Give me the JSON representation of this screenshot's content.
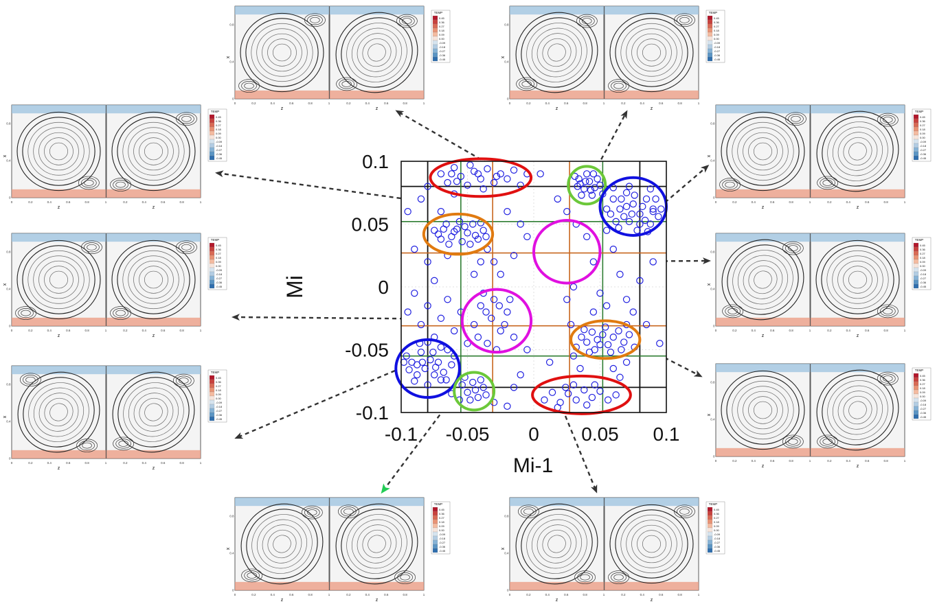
{
  "chart_data": {
    "type": "scatter",
    "xlabel": "Mi-1",
    "ylabel": "Mi",
    "xlim": [
      -0.1,
      0.1
    ],
    "ylim": [
      -0.1,
      0.1
    ],
    "x_ticks": [
      "-0.1",
      "-0.05",
      "0",
      "0.05",
      "0.1"
    ],
    "y_ticks": [
      "0.1",
      "0.05",
      "0",
      "-0.05",
      "-0.1"
    ],
    "x_tick_values": [
      -0.1,
      -0.05,
      0,
      0.05,
      0.1
    ],
    "y_tick_values": [
      0.1,
      0.05,
      0,
      -0.05,
      -0.1
    ],
    "marker_color": "#1f1fe0",
    "black_lines": [
      -0.08,
      0.08
    ],
    "green_lines": [
      -0.055,
      0.052
    ],
    "orange_lines": [
      -0.031,
      0.027
    ],
    "cluster_circles": [
      {
        "color": "#e01010",
        "cx": -0.04,
        "cy": 0.087,
        "rx": 0.038,
        "ry": 0.015
      },
      {
        "color": "#e07a10",
        "cx": -0.057,
        "cy": 0.042,
        "rx": 0.026,
        "ry": 0.016
      },
      {
        "color": "#6cc83a",
        "cx": 0.04,
        "cy": 0.081,
        "rx": 0.014,
        "ry": 0.015
      },
      {
        "color": "#1010e0",
        "cx": 0.075,
        "cy": 0.064,
        "rx": 0.025,
        "ry": 0.023
      },
      {
        "color": "#e010e0",
        "cx": 0.025,
        "cy": 0.028,
        "rx": 0.025,
        "ry": 0.025
      },
      {
        "color": "#e010e0",
        "cx": -0.028,
        "cy": -0.027,
        "rx": 0.026,
        "ry": 0.025
      },
      {
        "color": "#e07a10",
        "cx": 0.054,
        "cy": -0.042,
        "rx": 0.026,
        "ry": 0.015
      },
      {
        "color": "#1010e0",
        "cx": -0.08,
        "cy": -0.065,
        "rx": 0.024,
        "ry": 0.023
      },
      {
        "color": "#6cc83a",
        "cx": -0.045,
        "cy": -0.083,
        "rx": 0.015,
        "ry": 0.015
      },
      {
        "color": "#e01010",
        "cx": 0.036,
        "cy": -0.086,
        "rx": 0.037,
        "ry": 0.015
      }
    ],
    "points": [
      [
        -0.07,
        0.09
      ],
      [
        -0.065,
        0.083
      ],
      [
        -0.06,
        0.095
      ],
      [
        -0.055,
        0.088
      ],
      [
        -0.05,
        0.081
      ],
      [
        -0.045,
        0.092
      ],
      [
        -0.04,
        0.086
      ],
      [
        -0.035,
        0.094
      ],
      [
        -0.03,
        0.083
      ],
      [
        -0.025,
        0.09
      ],
      [
        -0.02,
        0.086
      ],
      [
        -0.015,
        0.093
      ],
      [
        -0.01,
        0.081
      ],
      [
        -0.048,
        0.097
      ],
      [
        -0.062,
        0.09
      ],
      [
        -0.038,
        0.078
      ],
      [
        -0.028,
        0.088
      ],
      [
        -0.005,
        0.09
      ],
      [
        -0.058,
        0.084
      ],
      [
        -0.042,
        0.09
      ],
      [
        -0.075,
        0.045
      ],
      [
        -0.07,
        0.038
      ],
      [
        -0.066,
        0.05
      ],
      [
        -0.062,
        0.04
      ],
      [
        -0.058,
        0.046
      ],
      [
        -0.054,
        0.036
      ],
      [
        -0.05,
        0.043
      ],
      [
        -0.046,
        0.05
      ],
      [
        -0.042,
        0.038
      ],
      [
        -0.038,
        0.045
      ],
      [
        -0.064,
        0.034
      ],
      [
        -0.056,
        0.052
      ],
      [
        -0.072,
        0.042
      ],
      [
        -0.048,
        0.034
      ],
      [
        -0.044,
        0.041
      ],
      [
        -0.06,
        0.044
      ],
      [
        -0.052,
        0.048
      ],
      [
        -0.068,
        0.046
      ],
      [
        -0.04,
        0.051
      ],
      [
        -0.036,
        0.04
      ],
      [
        0.031,
        0.088
      ],
      [
        0.035,
        0.082
      ],
      [
        0.038,
        0.078
      ],
      [
        0.042,
        0.084
      ],
      [
        0.046,
        0.079
      ],
      [
        0.04,
        0.09
      ],
      [
        0.044,
        0.073
      ],
      [
        0.048,
        0.086
      ],
      [
        0.036,
        0.073
      ],
      [
        0.033,
        0.08
      ],
      [
        0.05,
        0.081
      ],
      [
        0.045,
        0.09
      ],
      [
        0.039,
        0.084
      ],
      [
        0.043,
        0.077
      ],
      [
        0.034,
        0.086
      ],
      [
        0.06,
        0.07
      ],
      [
        0.065,
        0.062
      ],
      [
        0.07,
        0.075
      ],
      [
        0.075,
        0.066
      ],
      [
        0.08,
        0.058
      ],
      [
        0.085,
        0.07
      ],
      [
        0.09,
        0.062
      ],
      [
        0.072,
        0.052
      ],
      [
        0.078,
        0.045
      ],
      [
        0.088,
        0.05
      ],
      [
        0.064,
        0.047
      ],
      [
        0.068,
        0.056
      ],
      [
        0.082,
        0.064
      ],
      [
        0.092,
        0.07
      ],
      [
        0.094,
        0.056
      ],
      [
        0.058,
        0.058
      ],
      [
        0.062,
        0.052
      ],
      [
        0.076,
        0.073
      ],
      [
        0.086,
        0.044
      ],
      [
        0.07,
        0.064
      ],
      [
        0.08,
        0.05
      ],
      [
        0.066,
        0.07
      ],
      [
        0.09,
        0.06
      ],
      [
        0.074,
        0.058
      ],
      [
        0.084,
        0.053
      ],
      [
        0.055,
        0.062
      ],
      [
        0.06,
        0.079
      ],
      [
        0.096,
        0.062
      ],
      [
        0.072,
        0.08
      ],
      [
        0.052,
        0.074
      ],
      [
        -0.045,
        -0.03
      ],
      [
        -0.04,
        -0.015
      ],
      [
        -0.035,
        -0.045
      ],
      [
        -0.03,
        -0.01
      ],
      [
        -0.025,
        -0.035
      ],
      [
        -0.02,
        -0.02
      ],
      [
        -0.015,
        -0.04
      ],
      [
        -0.032,
        -0.025
      ],
      [
        -0.038,
        -0.005
      ],
      [
        -0.028,
        -0.05
      ],
      [
        -0.022,
        -0.03
      ],
      [
        -0.042,
        -0.04
      ],
      [
        -0.018,
        -0.01
      ],
      [
        -0.036,
        -0.02
      ],
      [
        -0.026,
        -0.015
      ],
      [
        -0.096,
        -0.055
      ],
      [
        -0.092,
        -0.06
      ],
      [
        -0.088,
        -0.07
      ],
      [
        -0.085,
        -0.052
      ],
      [
        -0.082,
        -0.065
      ],
      [
        -0.078,
        -0.058
      ],
      [
        -0.075,
        -0.07
      ],
      [
        -0.072,
        -0.06
      ],
      [
        -0.068,
        -0.068
      ],
      [
        -0.065,
        -0.05
      ],
      [
        -0.062,
        -0.062
      ],
      [
        -0.09,
        -0.075
      ],
      [
        -0.086,
        -0.045
      ],
      [
        -0.08,
        -0.078
      ],
      [
        -0.07,
        -0.048
      ],
      [
        -0.076,
        -0.052
      ],
      [
        -0.066,
        -0.074
      ],
      [
        -0.094,
        -0.066
      ],
      [
        -0.084,
        -0.06
      ],
      [
        -0.074,
        -0.064
      ],
      [
        -0.098,
        -0.06
      ],
      [
        -0.06,
        -0.055
      ],
      [
        -0.08,
        -0.044
      ],
      [
        -0.07,
        -0.074
      ],
      [
        -0.088,
        -0.062
      ],
      [
        -0.054,
        -0.078
      ],
      [
        -0.05,
        -0.084
      ],
      [
        -0.046,
        -0.076
      ],
      [
        -0.042,
        -0.088
      ],
      [
        -0.038,
        -0.08
      ],
      [
        -0.048,
        -0.09
      ],
      [
        -0.044,
        -0.082
      ],
      [
        -0.036,
        -0.086
      ],
      [
        -0.052,
        -0.072
      ],
      [
        -0.04,
        -0.074
      ],
      [
        0.032,
        -0.048
      ],
      [
        0.036,
        -0.04
      ],
      [
        0.04,
        -0.044
      ],
      [
        0.044,
        -0.036
      ],
      [
        0.048,
        -0.042
      ],
      [
        0.052,
        -0.038
      ],
      [
        0.056,
        -0.046
      ],
      [
        0.06,
        -0.04
      ],
      [
        0.064,
        -0.035
      ],
      [
        0.068,
        -0.044
      ],
      [
        0.072,
        -0.038
      ],
      [
        0.076,
        -0.048
      ],
      [
        0.046,
        -0.05
      ],
      [
        0.054,
        -0.032
      ],
      [
        0.066,
        -0.05
      ],
      [
        0.038,
        -0.034
      ],
      [
        0.042,
        -0.052
      ],
      [
        0.058,
        -0.052
      ],
      [
        0.07,
        -0.03
      ],
      [
        0.05,
        -0.046
      ],
      [
        0.008,
        -0.09
      ],
      [
        0.014,
        -0.084
      ],
      [
        0.02,
        -0.092
      ],
      [
        0.026,
        -0.085
      ],
      [
        0.032,
        -0.09
      ],
      [
        0.038,
        -0.082
      ],
      [
        0.044,
        -0.088
      ],
      [
        0.05,
        -0.083
      ],
      [
        0.056,
        -0.09
      ],
      [
        0.062,
        -0.086
      ],
      [
        0.03,
        -0.078
      ],
      [
        0.04,
        -0.094
      ],
      [
        0.024,
        -0.08
      ],
      [
        0.046,
        -0.078
      ],
      [
        0.018,
        -0.096
      ],
      [
        -0.095,
        0.06
      ],
      [
        -0.09,
        0.03
      ],
      [
        -0.085,
        0.07
      ],
      [
        -0.08,
        0.02
      ],
      [
        -0.075,
        0.005
      ],
      [
        -0.07,
        0.06
      ],
      [
        -0.065,
        0.025
      ],
      [
        -0.035,
        0.03
      ],
      [
        -0.03,
        0.02
      ],
      [
        -0.025,
        0.01
      ],
      [
        -0.02,
        0.06
      ],
      [
        -0.015,
        0.025
      ],
      [
        -0.01,
        0.05
      ],
      [
        -0.005,
        0.04
      ],
      [
        -0.095,
        -0.02
      ],
      [
        -0.09,
        -0.005
      ],
      [
        -0.085,
        -0.03
      ],
      [
        -0.08,
        -0.015
      ],
      [
        -0.075,
        -0.04
      ],
      [
        -0.07,
        -0.025
      ],
      [
        -0.065,
        -0.01
      ],
      [
        -0.06,
        -0.035
      ],
      [
        -0.055,
        -0.02
      ],
      [
        -0.05,
        -0.045
      ],
      [
        -0.045,
        0.01
      ],
      [
        -0.04,
        0.02
      ],
      [
        -0.01,
        -0.07
      ],
      [
        -0.005,
        -0.05
      ],
      [
        -0.02,
        -0.095
      ],
      [
        -0.03,
        -0.092
      ],
      [
        -0.015,
        -0.08
      ],
      [
        0.005,
        0.09
      ],
      [
        0.025,
        0.06
      ],
      [
        0.025,
        -0.01
      ],
      [
        0.028,
        -0.03
      ],
      [
        0.03,
        -0.055
      ],
      [
        0.035,
        -0.065
      ],
      [
        0.04,
        0.04
      ],
      [
        0.045,
        0.02
      ],
      [
        0.05,
        -0.005
      ],
      [
        0.055,
        -0.015
      ],
      [
        0.06,
        0.03
      ],
      [
        0.065,
        0.01
      ],
      [
        0.07,
        -0.01
      ],
      [
        0.075,
        -0.02
      ],
      [
        0.08,
        0.005
      ],
      [
        0.085,
        -0.03
      ],
      [
        0.09,
        0.02
      ],
      [
        0.095,
        -0.045
      ],
      [
        0.06,
        -0.065
      ],
      [
        0.065,
        -0.072
      ],
      [
        0.07,
        -0.06
      ],
      [
        0.03,
        0.0
      ],
      [
        0.045,
        -0.02
      ],
      [
        0.055,
        0.045
      ],
      [
        0.032,
        0.05
      ],
      [
        -0.06,
        0.074
      ],
      [
        -0.08,
        0.08
      ],
      [
        0.012,
        -0.06
      ],
      [
        0.018,
        0.07
      ],
      [
        0.088,
        0.078
      ],
      [
        -0.062,
        -0.085
      ],
      [
        -0.056,
        -0.09
      ]
    ],
    "thumbnail_legend": {
      "title": "TEMP",
      "labels": [
        "0.45",
        "0.36",
        "0.27",
        "0.18",
        "0.09",
        "0.00",
        "-0.09",
        "-0.18",
        "-0.27",
        "-0.36",
        "-0.45"
      ],
      "colors": [
        "#b2182b",
        "#c8413d",
        "#d96a55",
        "#e99375",
        "#f4bba0",
        "#f7e5dc",
        "#d6e4ef",
        "#b3cde3",
        "#86b3d6",
        "#5b95c4",
        "#2f6ead"
      ]
    },
    "thumbnail_axes": {
      "xlabel": "z",
      "ylabel": "x",
      "x_ticks": [
        "0",
        "0.2",
        "0.4",
        "0.6",
        "0.8",
        "1"
      ],
      "y_ticks": [
        "0",
        "0.2",
        "0.4",
        "0.6",
        "0.8",
        "1"
      ]
    }
  }
}
